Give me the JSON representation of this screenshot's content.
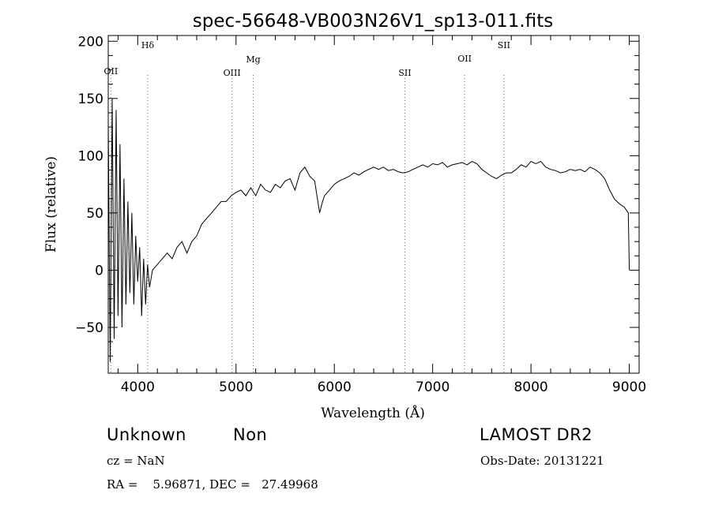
{
  "chart_data": {
    "type": "line",
    "title": "spec-56648-VB003N26V1_sp13-011.fits",
    "xlabel": "Wavelength (Å)",
    "ylabel": "Flux (relative)",
    "xlim": [
      3700,
      9100
    ],
    "ylim": [
      -90,
      205
    ],
    "x_ticks": [
      4000,
      5000,
      6000,
      7000,
      8000,
      9000
    ],
    "y_ticks": [
      -50,
      0,
      50,
      100,
      150,
      200
    ],
    "grid": false,
    "line_color": "#000000",
    "marker_color": "#666666",
    "lines": [
      {
        "label": "OII",
        "wavelength": 3727
      },
      {
        "label": "Hδ",
        "wavelength": 4102
      },
      {
        "label": "OIII",
        "wavelength": 4959
      },
      {
        "label": "Mg",
        "wavelength": 5175
      },
      {
        "label": "SII",
        "wavelength": 6717
      },
      {
        "label": "OII",
        "wavelength": 7325
      },
      {
        "label": "SII",
        "wavelength": 7725
      }
    ],
    "series": [
      {
        "x": [
          3700,
          3720,
          3740,
          3760,
          3780,
          3800,
          3820,
          3840,
          3860,
          3880,
          3900,
          3920,
          3940,
          3960,
          3980,
          4000,
          4020,
          4040,
          4060,
          4080,
          4100,
          4120,
          4150,
          4200,
          4250,
          4300,
          4350,
          4400,
          4450,
          4500,
          4550,
          4600,
          4650,
          4700,
          4750,
          4800,
          4850,
          4900,
          4950,
          5000,
          5050,
          5100,
          5150,
          5200,
          5250,
          5300,
          5350,
          5400,
          5450,
          5500,
          5550,
          5600,
          5650,
          5700,
          5750,
          5800,
          5850,
          5880,
          5900,
          5950,
          6000,
          6050,
          6100,
          6150,
          6200,
          6250,
          6300,
          6350,
          6400,
          6450,
          6500,
          6550,
          6600,
          6650,
          6700,
          6750,
          6800,
          6850,
          6900,
          6950,
          7000,
          7050,
          7100,
          7150,
          7200,
          7250,
          7300,
          7350,
          7400,
          7450,
          7500,
          7550,
          7600,
          7650,
          7700,
          7750,
          7800,
          7850,
          7900,
          7950,
          8000,
          8050,
          8100,
          8150,
          8200,
          8250,
          8300,
          8350,
          8400,
          8450,
          8500,
          8550,
          8600,
          8650,
          8700,
          8750,
          8800,
          8850,
          8900,
          8950,
          8990,
          9000
        ],
        "y": [
          130,
          -80,
          150,
          -60,
          140,
          -40,
          110,
          -50,
          80,
          -30,
          60,
          -20,
          50,
          -30,
          30,
          -10,
          20,
          -40,
          10,
          -30,
          5,
          -15,
          0,
          5,
          10,
          15,
          10,
          20,
          25,
          15,
          25,
          30,
          40,
          45,
          50,
          55,
          60,
          60,
          65,
          68,
          70,
          65,
          72,
          65,
          75,
          70,
          68,
          75,
          72,
          78,
          80,
          70,
          85,
          90,
          82,
          78,
          50,
          60,
          65,
          70,
          75,
          78,
          80,
          82,
          85,
          83,
          86,
          88,
          90,
          88,
          90,
          87,
          88,
          86,
          85,
          86,
          88,
          90,
          92,
          90,
          93,
          92,
          94,
          90,
          92,
          93,
          94,
          92,
          95,
          93,
          88,
          85,
          82,
          80,
          83,
          85,
          85,
          88,
          92,
          90,
          95,
          93,
          95,
          90,
          88,
          87,
          85,
          86,
          88,
          87,
          88,
          86,
          90,
          88,
          85,
          80,
          70,
          62,
          58,
          55,
          50,
          0
        ]
      }
    ]
  },
  "info": {
    "class_label": "Unknown",
    "subclass_label": "Non",
    "survey": "LAMOST DR2",
    "cz": "cz = NaN",
    "obs_date": "Obs-Date: 20131221",
    "radec": "RA =    5.96871, DEC =   27.49968"
  }
}
